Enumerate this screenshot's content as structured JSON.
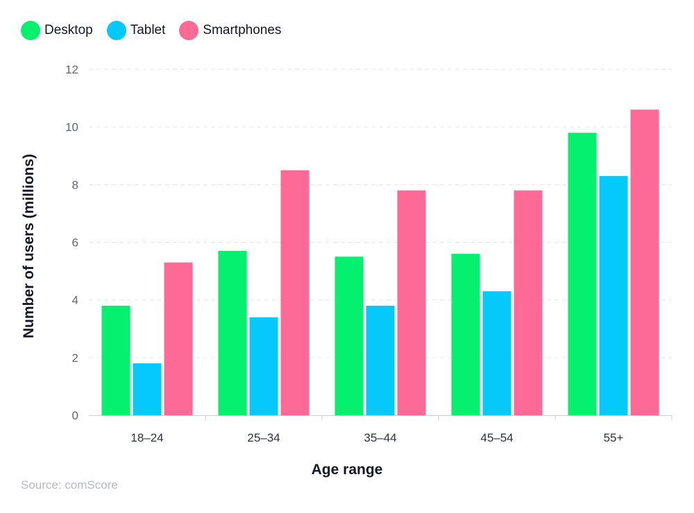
{
  "legend": [
    {
      "label": "Desktop",
      "color": "#05f06e"
    },
    {
      "label": "Tablet",
      "color": "#05c8fb"
    },
    {
      "label": "Smartphones",
      "color": "#fe6a97"
    }
  ],
  "source": "Source: comScore",
  "chart_data": {
    "type": "bar",
    "categories": [
      "18–24",
      "25–34",
      "35–44",
      "45–54",
      "55+"
    ],
    "series": [
      {
        "name": "Desktop",
        "color": "#05f06e",
        "values": [
          3.8,
          5.7,
          5.5,
          5.6,
          9.8
        ]
      },
      {
        "name": "Tablet",
        "color": "#05c8fb",
        "values": [
          1.8,
          3.4,
          3.8,
          4.3,
          8.3
        ]
      },
      {
        "name": "Smartphones",
        "color": "#fe6a97",
        "values": [
          5.3,
          8.5,
          7.8,
          7.8,
          10.6
        ]
      }
    ],
    "xlabel": "Age range",
    "ylabel": "Number of users (millions)",
    "ylim": [
      0,
      12
    ],
    "yticks": [
      0,
      2,
      4,
      6,
      8,
      10,
      12
    ],
    "grid": true,
    "legend_position": "top-left"
  }
}
